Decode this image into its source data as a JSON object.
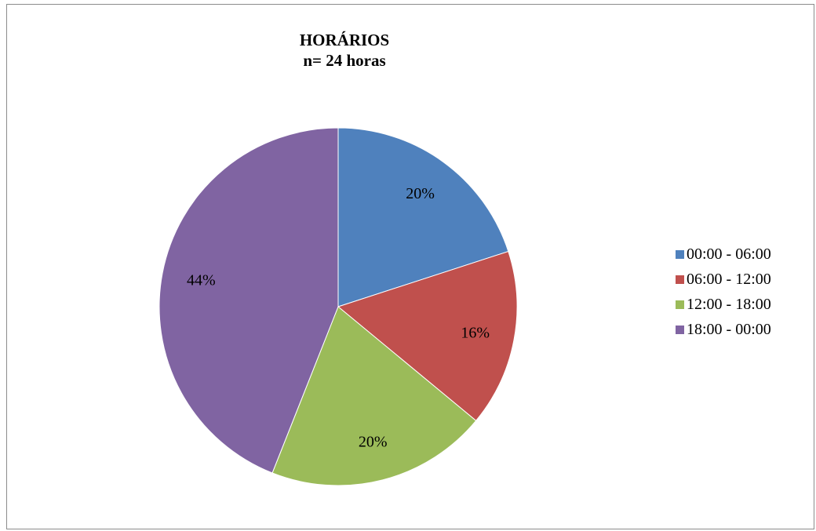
{
  "chart_data": {
    "type": "pie",
    "title": "HORÁRIOS",
    "subtitle": "n= 24 horas",
    "categories": [
      "00:00 - 06:00",
      "06:00 - 12:00",
      "12:00 - 18:00",
      "18:00 - 00:00"
    ],
    "values": [
      20,
      16,
      20,
      44
    ],
    "labels": [
      "20%",
      "16%",
      "20%",
      "44%"
    ],
    "colors": [
      "#4f81bd",
      "#c0504d",
      "#9bbb59",
      "#8064a2"
    ],
    "legend": "right",
    "start_angle": "top",
    "direction": "clockwise"
  }
}
